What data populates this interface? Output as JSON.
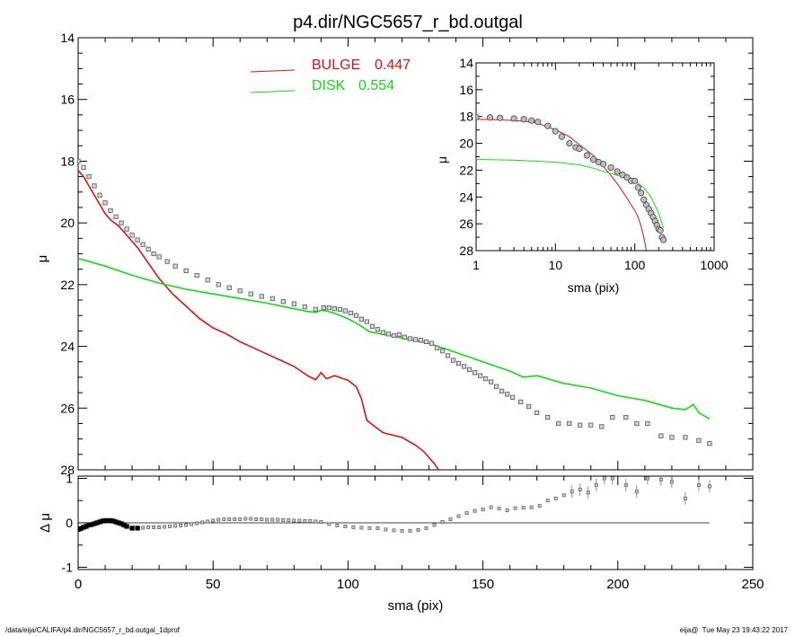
{
  "footer": {
    "left": "/data/eija/CALIFA/p4.dir/NGC5657_r_bd.outgal_1dprof",
    "right": "eija@  Tue May 23 19:43:22 2017"
  },
  "colors": {
    "bulge": "#e01010",
    "disk": "#10dd10",
    "data": "#000000"
  },
  "chart_data": [
    {
      "id": "main",
      "type": "line",
      "title": "p4.dir/NGC5657_r_bd.outgal",
      "xlabel": "",
      "ylabel": "μ",
      "xlim": [
        0,
        250
      ],
      "ylim": [
        28,
        14
      ],
      "y_inverted": true,
      "yticks": [
        14,
        16,
        18,
        20,
        22,
        24,
        26,
        28
      ],
      "legend": [
        {
          "label": "BULGE",
          "value": "0.447",
          "color": "#e01010"
        },
        {
          "label": "DISK",
          "value": "0.554",
          "color": "#10dd10"
        }
      ],
      "series": [
        {
          "name": "BULGE",
          "color": "#e01010",
          "x": [
            0,
            2,
            4,
            6,
            8,
            10,
            12,
            15,
            18,
            22,
            26,
            30,
            35,
            40,
            45,
            50,
            55,
            60,
            65,
            70,
            75,
            80,
            85,
            88,
            90,
            92,
            95,
            100,
            103,
            105,
            107,
            110,
            113,
            120,
            125,
            128,
            130,
            132,
            134
          ],
          "y": [
            18.3,
            18.5,
            18.8,
            19.1,
            19.4,
            19.7,
            19.9,
            20.1,
            20.4,
            20.8,
            21.3,
            21.8,
            22.3,
            22.7,
            23.1,
            23.4,
            23.6,
            23.85,
            24.05,
            24.25,
            24.45,
            24.65,
            24.95,
            25.08,
            24.85,
            25.05,
            24.95,
            25.1,
            25.3,
            25.7,
            26.4,
            26.6,
            26.8,
            26.95,
            27.2,
            27.4,
            27.6,
            27.8,
            28.05
          ]
        },
        {
          "name": "DISK",
          "color": "#10dd10",
          "x": [
            0,
            10,
            20,
            30,
            40,
            50,
            60,
            70,
            80,
            85,
            88,
            90,
            92,
            95,
            100,
            105,
            108,
            110,
            120,
            130,
            140,
            150,
            160,
            165,
            170,
            180,
            190,
            200,
            210,
            220,
            225,
            228,
            230,
            234
          ],
          "y": [
            21.15,
            21.4,
            21.7,
            21.95,
            22.15,
            22.3,
            22.45,
            22.6,
            22.78,
            22.87,
            22.9,
            22.83,
            22.85,
            22.93,
            23.1,
            23.35,
            23.53,
            23.56,
            23.73,
            23.9,
            24.2,
            24.5,
            24.8,
            25.0,
            24.95,
            25.2,
            25.35,
            25.6,
            25.75,
            26.0,
            26.05,
            25.88,
            26.15,
            26.35
          ]
        },
        {
          "name": "",
          "marker": "square",
          "x": [
            0,
            2,
            4,
            6,
            8,
            10,
            12,
            14,
            16,
            18,
            20,
            22,
            24,
            26,
            28,
            30,
            33,
            36,
            40,
            44,
            48,
            52,
            56,
            60,
            64,
            68,
            72,
            76,
            80,
            84,
            88,
            91,
            93,
            95,
            97,
            99,
            101,
            103,
            105,
            107,
            109,
            111,
            113,
            115,
            117,
            119,
            121,
            123,
            125,
            127,
            129,
            131,
            133,
            135,
            137,
            139,
            141,
            143,
            145,
            147,
            149,
            151,
            153,
            155,
            157,
            159,
            161,
            164,
            167,
            170,
            174,
            178,
            182,
            186,
            190,
            194,
            198,
            203,
            207,
            211,
            216,
            220,
            225,
            230,
            234
          ],
          "y": [
            18.0,
            18.2,
            18.5,
            18.8,
            19.1,
            19.35,
            19.6,
            19.8,
            20.0,
            20.2,
            20.4,
            20.55,
            20.7,
            20.85,
            21.0,
            21.1,
            21.25,
            21.4,
            21.55,
            21.7,
            21.85,
            22.0,
            22.1,
            22.2,
            22.3,
            22.38,
            22.45,
            22.55,
            22.62,
            22.72,
            22.8,
            22.75,
            22.75,
            22.78,
            22.8,
            22.85,
            22.92,
            23.0,
            23.12,
            23.2,
            23.35,
            23.45,
            23.55,
            23.6,
            23.65,
            23.62,
            23.7,
            23.75,
            23.78,
            23.8,
            23.85,
            23.9,
            24.05,
            24.15,
            24.3,
            24.45,
            24.55,
            24.65,
            24.75,
            24.85,
            24.95,
            25.05,
            25.15,
            25.3,
            25.45,
            25.55,
            25.65,
            25.8,
            25.95,
            26.15,
            26.3,
            26.5,
            26.5,
            26.55,
            26.55,
            26.6,
            26.3,
            26.3,
            26.5,
            26.5,
            26.9,
            26.95,
            26.95,
            27.05,
            27.15
          ]
        }
      ]
    },
    {
      "id": "inset",
      "type": "line",
      "title": "",
      "xlabel": "sma (pix)",
      "ylabel": "μ",
      "x_scale": "log",
      "xlim": [
        1,
        1000
      ],
      "ylim": [
        28,
        14
      ],
      "y_inverted": true,
      "xticks": [
        1,
        10,
        100,
        1000
      ],
      "yticks": [
        14,
        16,
        18,
        20,
        22,
        24,
        26,
        28
      ],
      "series": [
        {
          "name": "",
          "color": "#e01010",
          "x": [
            1,
            2,
            4,
            6,
            10,
            15,
            20,
            30,
            40,
            50,
            60,
            80,
            90,
            100,
            110,
            120,
            130,
            140
          ],
          "y": [
            18.2,
            18.25,
            18.35,
            18.5,
            19.0,
            19.5,
            20.1,
            20.9,
            21.7,
            22.4,
            23.0,
            24.1,
            24.6,
            25.0,
            25.5,
            26.2,
            27.0,
            28.0
          ]
        },
        {
          "name": "",
          "color": "#10dd10",
          "x": [
            1,
            3,
            10,
            20,
            30,
            50,
            70,
            100,
            130,
            160,
            200,
            230
          ],
          "y": [
            21.2,
            21.25,
            21.4,
            21.6,
            21.85,
            22.25,
            22.5,
            22.8,
            23.3,
            24.0,
            25.2,
            26.3
          ]
        },
        {
          "name": "",
          "marker": "circle",
          "x": [
            1,
            1.5,
            2,
            3,
            4,
            5,
            6,
            8,
            10,
            12,
            15,
            18,
            20,
            25,
            30,
            35,
            40,
            50,
            60,
            70,
            80,
            90,
            100,
            110,
            120,
            130,
            140,
            150,
            160,
            170,
            180,
            190,
            200,
            210,
            220,
            230
          ],
          "y": [
            18.05,
            18.07,
            18.1,
            18.15,
            18.2,
            18.3,
            18.4,
            18.7,
            19.1,
            19.5,
            20.0,
            20.3,
            20.4,
            20.9,
            21.2,
            21.4,
            21.55,
            21.8,
            22.1,
            22.35,
            22.55,
            22.8,
            22.8,
            23.3,
            23.7,
            24.2,
            24.6,
            24.9,
            25.2,
            25.5,
            25.8,
            26.1,
            26.4,
            26.5,
            27.0,
            27.2
          ]
        }
      ]
    },
    {
      "id": "residual",
      "type": "scatter",
      "title": "",
      "xlabel": "sma (pix)",
      "ylabel": "Δ μ",
      "xlim": [
        0,
        250
      ],
      "ylim": [
        -1.05,
        1.05
      ],
      "xticks": [
        0,
        50,
        100,
        150,
        200,
        250
      ],
      "yticks": [
        -1,
        0,
        1
      ],
      "series": [
        {
          "name": "",
          "marker": "square",
          "x": [
            0,
            1,
            2,
            3,
            4,
            5,
            6,
            7,
            8,
            9,
            10,
            11,
            12,
            13,
            14,
            15,
            16,
            17,
            18,
            20,
            22,
            24,
            26,
            28,
            30,
            32,
            34,
            36,
            38,
            40,
            42,
            44,
            46,
            48,
            50,
            52,
            54,
            56,
            58,
            60,
            62,
            64,
            66,
            68,
            70,
            72,
            74,
            76,
            78,
            80,
            82,
            84,
            86,
            88,
            90,
            93,
            96,
            99,
            102,
            105,
            108,
            111,
            114,
            117,
            120,
            123,
            126,
            129,
            132,
            135,
            138,
            141,
            144,
            147,
            150,
            153,
            156,
            159,
            162,
            165,
            168,
            171,
            174,
            177,
            180,
            183,
            186,
            189,
            192,
            195,
            198,
            203,
            207,
            211,
            216,
            220,
            225,
            230,
            234
          ],
          "y": [
            -0.15,
            -0.13,
            -0.1,
            -0.08,
            -0.05,
            -0.04,
            -0.02,
            0.0,
            0.02,
            0.04,
            0.05,
            0.05,
            0.05,
            0.04,
            0.02,
            0.0,
            -0.02,
            -0.05,
            -0.08,
            -0.12,
            -0.12,
            -0.11,
            -0.1,
            -0.1,
            -0.1,
            -0.09,
            -0.08,
            -0.07,
            -0.06,
            -0.05,
            -0.03,
            -0.01,
            0.01,
            0.03,
            0.05,
            0.07,
            0.08,
            0.08,
            0.08,
            0.08,
            0.09,
            0.09,
            0.08,
            0.08,
            0.07,
            0.07,
            0.07,
            0.06,
            0.06,
            0.05,
            0.05,
            0.04,
            0.04,
            0.03,
            0.02,
            -0.03,
            -0.06,
            -0.08,
            -0.1,
            -0.11,
            -0.12,
            -0.12,
            -0.15,
            -0.17,
            -0.18,
            -0.18,
            -0.16,
            -0.12,
            -0.05,
            0.02,
            0.08,
            0.15,
            0.22,
            0.27,
            0.3,
            0.35,
            0.32,
            0.28,
            0.33,
            0.34,
            0.35,
            0.38,
            0.5,
            0.55,
            0.62,
            0.7,
            0.75,
            0.68,
            0.85,
            1.0,
            1.0,
            0.85,
            0.7,
            1.0,
            0.97,
            0.92,
            0.55,
            0.85,
            0.82
          ]
        }
      ]
    }
  ]
}
